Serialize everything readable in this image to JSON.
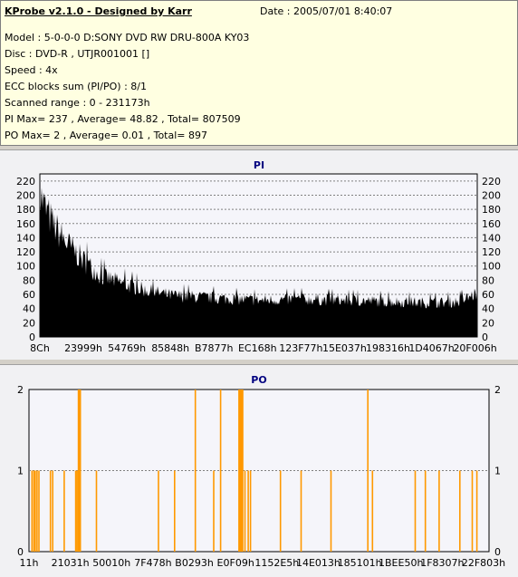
{
  "header": {
    "app_title": "KProbe v2.1.0 - Designed by Karr",
    "date": "Date : 2005/07/01 8:40:07",
    "lines": [
      "Model : 5-0-0-0 D:SONY    DVD RW DRU-800A  KY03",
      "Disc : DVD-R , UTJR001001 []",
      "Speed : 4x",
      "ECC blocks sum (PI/PO) : 8/1",
      "Scanned range : 0 - 231173h",
      "PI Max= 237 , Average= 48.82 , Total= 807509",
      "PO Max= 2 , Average= 0.01 , Total= 897"
    ]
  },
  "colors": {
    "pi_fill": "#000000",
    "po_bar": "#ff9900",
    "title": "#000080",
    "plot_bg": "#f5f5fa"
  },
  "chart_data": [
    {
      "type": "area",
      "title": "PI",
      "ylim": [
        0,
        230
      ],
      "yticks": [
        0,
        20,
        40,
        60,
        80,
        100,
        120,
        140,
        160,
        180,
        200,
        220
      ],
      "xtick_labels": [
        "8Ch",
        "23999h",
        "54769h",
        "85848h",
        "B7877h",
        "EC168h",
        "123F77h",
        "15E037h",
        "198316h",
        "1D4067h",
        "20F006h"
      ],
      "grid": true,
      "envelope_profile": [
        {
          "x": 0.0,
          "y": 237
        },
        {
          "x": 0.01,
          "y": 215
        },
        {
          "x": 0.03,
          "y": 185
        },
        {
          "x": 0.06,
          "y": 155
        },
        {
          "x": 0.1,
          "y": 125
        },
        {
          "x": 0.14,
          "y": 100
        },
        {
          "x": 0.2,
          "y": 85
        },
        {
          "x": 0.25,
          "y": 75
        },
        {
          "x": 0.3,
          "y": 68
        },
        {
          "x": 0.4,
          "y": 64
        },
        {
          "x": 0.5,
          "y": 60
        },
        {
          "x": 0.6,
          "y": 62
        },
        {
          "x": 0.7,
          "y": 60
        },
        {
          "x": 0.8,
          "y": 58
        },
        {
          "x": 0.9,
          "y": 56
        },
        {
          "x": 0.96,
          "y": 58
        },
        {
          "x": 1.0,
          "y": 72
        }
      ]
    },
    {
      "type": "bar",
      "title": "PO",
      "ylim": [
        0,
        2
      ],
      "yticks": [
        0,
        1,
        2
      ],
      "xtick_labels": [
        "11h",
        "21031h",
        "50010h",
        "7F478h",
        "B0293h",
        "E0F09h",
        "1152E5h",
        "14E013h",
        "185101h",
        "1BEE50h",
        "1F8307h",
        "22F803h"
      ],
      "grid": true,
      "bars": [
        {
          "x": 0.005,
          "v": 1
        },
        {
          "x": 0.009,
          "v": 1
        },
        {
          "x": 0.012,
          "v": 1
        },
        {
          "x": 0.016,
          "v": 1
        },
        {
          "x": 0.02,
          "v": 1
        },
        {
          "x": 0.045,
          "v": 1
        },
        {
          "x": 0.05,
          "v": 1
        },
        {
          "x": 0.075,
          "v": 1
        },
        {
          "x": 0.1,
          "v": 1
        },
        {
          "x": 0.103,
          "v": 1
        },
        {
          "x": 0.106,
          "v": 2
        },
        {
          "x": 0.108,
          "v": 2
        },
        {
          "x": 0.11,
          "v": 2
        },
        {
          "x": 0.145,
          "v": 1
        },
        {
          "x": 0.28,
          "v": 1
        },
        {
          "x": 0.315,
          "v": 1
        },
        {
          "x": 0.36,
          "v": 2
        },
        {
          "x": 0.4,
          "v": 1
        },
        {
          "x": 0.415,
          "v": 2
        },
        {
          "x": 0.455,
          "v": 2
        },
        {
          "x": 0.457,
          "v": 2
        },
        {
          "x": 0.459,
          "v": 2
        },
        {
          "x": 0.461,
          "v": 2
        },
        {
          "x": 0.463,
          "v": 2
        },
        {
          "x": 0.468,
          "v": 1
        },
        {
          "x": 0.475,
          "v": 1
        },
        {
          "x": 0.48,
          "v": 1
        },
        {
          "x": 0.545,
          "v": 1
        },
        {
          "x": 0.59,
          "v": 1
        },
        {
          "x": 0.655,
          "v": 1
        },
        {
          "x": 0.735,
          "v": 2
        },
        {
          "x": 0.745,
          "v": 1
        },
        {
          "x": 0.838,
          "v": 1
        },
        {
          "x": 0.86,
          "v": 1
        },
        {
          "x": 0.89,
          "v": 1
        },
        {
          "x": 0.935,
          "v": 1
        },
        {
          "x": 0.962,
          "v": 1
        },
        {
          "x": 0.972,
          "v": 1
        }
      ]
    }
  ]
}
